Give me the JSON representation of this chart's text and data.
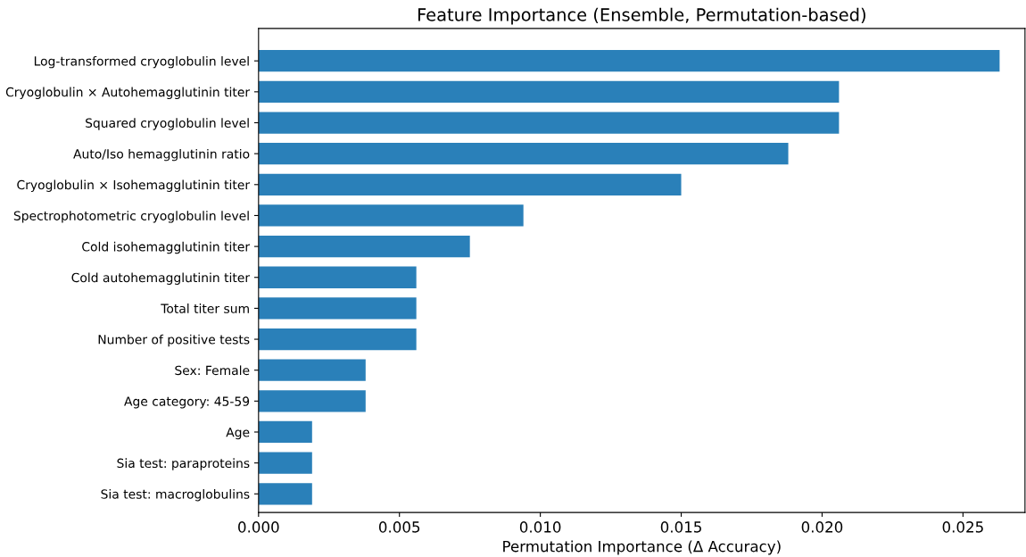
{
  "chart_data": {
    "type": "bar",
    "orientation": "horizontal",
    "title": "Feature Importance (Ensemble, Permutation-based)",
    "xlabel": "Permutation Importance (Δ Accuracy)",
    "categories": [
      "Log-transformed cryoglobulin level",
      "Cryoglobulin × Autohemagglutinin titer",
      "Squared cryoglobulin level",
      "Auto/Iso hemagglutinin ratio",
      "Cryoglobulin × Isohemagglutinin titer",
      "Spectrophotometric cryoglobulin level",
      "Cold isohemagglutinin titer",
      "Cold autohemagglutinin titer",
      "Total titer sum",
      "Number of positive tests",
      "Sex: Female",
      "Age category: 45-59",
      "Age",
      "Sia test: paraproteins",
      "Sia test: macroglobulins"
    ],
    "values": [
      0.0263,
      0.0206,
      0.0206,
      0.0188,
      0.015,
      0.0094,
      0.0075,
      0.0056,
      0.0056,
      0.0056,
      0.0038,
      0.0038,
      0.0019,
      0.0019,
      0.0019
    ],
    "color": "#2a80b9",
    "xlim": [
      0,
      0.0272
    ],
    "xticks": [
      {
        "value": 0,
        "label": "0.000"
      },
      {
        "value": 0.005,
        "label": "0.005"
      },
      {
        "value": 0.01,
        "label": "0.010"
      },
      {
        "value": 0.015,
        "label": "0.015"
      },
      {
        "value": 0.02,
        "label": "0.020"
      },
      {
        "value": 0.025,
        "label": "0.025"
      }
    ],
    "grid": false
  }
}
